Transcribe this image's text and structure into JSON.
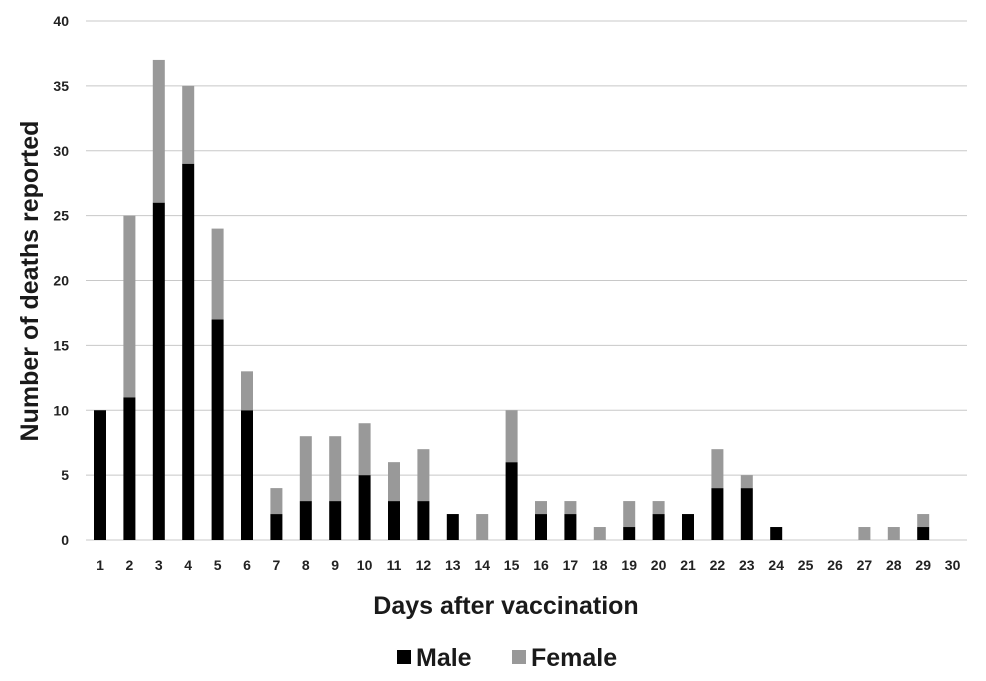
{
  "chart_data": {
    "type": "bar",
    "stacked": true,
    "title": "",
    "xlabel": "Days after vaccination",
    "ylabel": "Number of deaths reported",
    "ylim": [
      0,
      40
    ],
    "yticks": [
      0,
      5,
      10,
      15,
      20,
      25,
      30,
      35,
      40
    ],
    "grid": true,
    "legend_position": "bottom",
    "categories": [
      "1",
      "2",
      "3",
      "4",
      "5",
      "6",
      "7",
      "8",
      "9",
      "10",
      "11",
      "12",
      "13",
      "14",
      "15",
      "16",
      "17",
      "18",
      "19",
      "20",
      "21",
      "22",
      "23",
      "24",
      "25",
      "26",
      "27",
      "28",
      "29",
      "30"
    ],
    "series": [
      {
        "name": "Male",
        "color": "#000000",
        "values": [
          10,
          11,
          26,
          29,
          17,
          10,
          2,
          3,
          3,
          5,
          3,
          3,
          2,
          0,
          6,
          2,
          2,
          0,
          1,
          2,
          2,
          4,
          4,
          1,
          0,
          0,
          0,
          0,
          1,
          0
        ]
      },
      {
        "name": "Female",
        "color": "#999999",
        "values": [
          0,
          14,
          11,
          6,
          7,
          3,
          2,
          5,
          5,
          4,
          3,
          4,
          0,
          2,
          4,
          1,
          1,
          1,
          2,
          1,
          0,
          3,
          1,
          0,
          0,
          0,
          1,
          1,
          1,
          0
        ]
      }
    ]
  }
}
